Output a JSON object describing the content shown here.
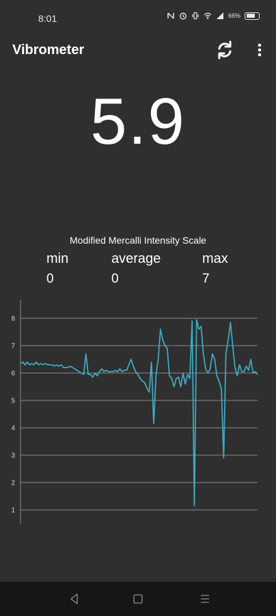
{
  "status_bar": {
    "time": "8:01",
    "battery_percent": "66%",
    "icons": [
      "nfc-icon",
      "alarm-icon",
      "vibrate-icon",
      "wifi-icon",
      "signal-icon",
      "battery-icon"
    ]
  },
  "app_bar": {
    "title": "Vibrometer",
    "actions": [
      "refresh-icon",
      "more-vertical-icon"
    ]
  },
  "reading": {
    "value": "5.9"
  },
  "scale": {
    "title": "Modified Mercalli Intensity Scale",
    "min_label": "min",
    "average_label": "average",
    "max_label": "max",
    "min_value": "0",
    "average_value": "0",
    "max_value": "7"
  },
  "colors": {
    "background": "#2f2f2f",
    "line": "#3fa9c0",
    "grid": "#8a8a8a",
    "nav_bar": "#161616"
  },
  "chart_data": {
    "type": "line",
    "yticks": [
      "1",
      "2",
      "3",
      "4",
      "5",
      "6",
      "7",
      "8"
    ],
    "ylim": [
      0.5,
      8.3
    ],
    "grid": "horizontal",
    "series": [
      {
        "values": [
          6.35,
          6.4,
          6.3,
          6.4,
          6.3,
          6.35,
          6.3,
          6.4,
          6.3,
          6.35,
          6.3,
          6.35,
          6.3,
          6.3,
          6.3,
          6.25,
          6.3,
          6.25,
          6.3,
          6.2,
          6.2,
          6.2,
          6.25,
          6.2,
          6.15,
          6.1,
          6.05,
          6.0,
          5.95,
          6.7,
          5.95,
          5.95,
          5.85,
          6.0,
          5.9,
          6.05,
          6.15,
          6.05,
          6.1,
          6.05,
          6.05,
          6.05,
          6.1,
          6.05,
          6.15,
          6.05,
          6.1,
          6.1,
          6.3,
          6.5,
          6.25,
          6.05,
          5.95,
          5.8,
          5.7,
          5.65,
          5.45,
          5.3,
          6.4,
          4.15,
          5.9,
          6.5,
          7.6,
          7.2,
          7.0,
          6.9,
          5.9,
          5.8,
          5.5,
          5.8,
          5.85,
          5.5,
          6.0,
          5.6,
          5.95,
          5.8,
          7.9,
          1.15,
          7.95,
          7.6,
          7.7,
          6.7,
          6.15,
          6.0,
          6.15,
          6.7,
          6.5,
          5.9,
          5.7,
          5.4,
          2.9,
          6.7,
          7.2,
          7.85,
          7.0,
          6.2,
          5.9,
          6.3,
          6.05,
          6.05,
          6.25,
          6.1,
          6.5,
          6.0,
          6.05,
          5.95
        ]
      }
    ]
  }
}
